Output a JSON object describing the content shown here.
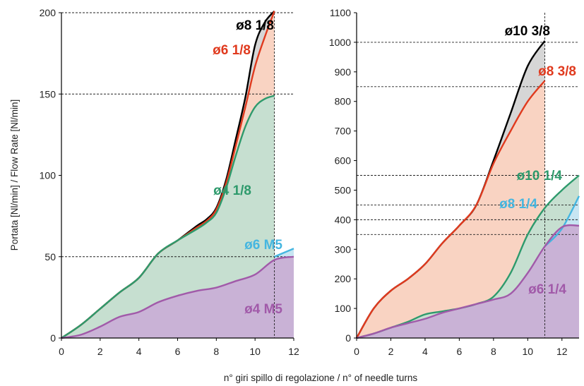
{
  "xlabel": "n° giri spillo di regolazione / n° of needle turns",
  "ylabel": "Portata [Nl/min] / Flow Rate [Nl/min]",
  "chart_data": [
    {
      "type": "area",
      "xlabel": "n° giri spillo di regolazione / n° of needle turns",
      "ylabel": "Portata [Nl/min] / Flow Rate [Nl/min]",
      "xlim": [
        0,
        12
      ],
      "ylim": [
        0,
        200
      ],
      "xticks": [
        0,
        2,
        4,
        6,
        8,
        10,
        12
      ],
      "yticks": [
        0,
        50,
        100,
        150,
        200
      ],
      "reference_lines": [
        50,
        150,
        200
      ],
      "end_line_x": 11,
      "series": [
        {
          "name": "ø8 1/8",
          "color": "#000000",
          "fill": "#d6d6d6",
          "x": [
            0,
            1,
            2,
            3,
            4,
            5,
            6,
            7,
            7.5,
            8,
            8.5,
            9,
            9.5,
            10,
            10.5,
            11
          ],
          "y": [
            0,
            8,
            18,
            28,
            37,
            52,
            60,
            69,
            73,
            80,
            97,
            122,
            148,
            180,
            194,
            201
          ]
        },
        {
          "name": "ø6 1/8",
          "color": "#e03a1e",
          "fill": "#f9d3c2",
          "x": [
            0,
            1,
            2,
            3,
            4,
            5,
            6,
            7,
            7.5,
            8,
            8.5,
            9,
            9.5,
            10,
            10.5,
            11
          ],
          "y": [
            0,
            8,
            18,
            28,
            37,
            52,
            60,
            68,
            72,
            79,
            95,
            118,
            142,
            167,
            185,
            201
          ]
        },
        {
          "name": "ø4 1/8",
          "color": "#2e9a6c",
          "fill": "#c6dfd0",
          "x": [
            0,
            1,
            2,
            3,
            4,
            5,
            6,
            7,
            7.5,
            8,
            8.5,
            9,
            9.5,
            10,
            10.5,
            11
          ],
          "y": [
            0,
            8,
            18,
            28,
            37,
            52,
            60,
            67,
            71,
            77,
            92,
            112,
            130,
            142,
            147,
            149
          ]
        },
        {
          "name": "ø6 M5",
          "color": "#45b6e0",
          "fill": "#c7e5f2",
          "x": [
            11,
            12
          ],
          "y": [
            50,
            55
          ]
        },
        {
          "name": "ø4 M5",
          "color": "#a15aa9",
          "fill": "#c9b2d6",
          "x": [
            0,
            1,
            2,
            3,
            4,
            5,
            6,
            7,
            8,
            9,
            10,
            11,
            12
          ],
          "y": [
            0,
            2,
            7,
            13,
            16,
            22,
            26,
            29,
            31,
            35,
            39,
            48,
            50
          ]
        }
      ]
    },
    {
      "type": "area",
      "xlabel": "n° giri spillo di regolazione / n° of needle turns",
      "xlim": [
        0,
        13
      ],
      "ylim": [
        0,
        1100
      ],
      "xticks": [
        0,
        2,
        4,
        6,
        8,
        10,
        12
      ],
      "yticks": [
        0,
        100,
        200,
        300,
        400,
        500,
        600,
        700,
        800,
        900,
        1000,
        1100
      ],
      "reference_lines": [
        350,
        400,
        450,
        550,
        850,
        1000
      ],
      "end_line_x": 11,
      "series": [
        {
          "name": "ø10 3/8",
          "color": "#000000",
          "fill": "#d6d6d6",
          "x": [
            0,
            1,
            2,
            3,
            4,
            5,
            6,
            7,
            8,
            9,
            10,
            11
          ],
          "y": [
            0,
            100,
            160,
            200,
            250,
            320,
            380,
            450,
            600,
            760,
            920,
            1005
          ]
        },
        {
          "name": "ø8 3/8",
          "color": "#e03a1e",
          "fill": "#f9d3c2",
          "x": [
            0,
            1,
            2,
            3,
            4,
            5,
            6,
            7,
            8,
            9,
            10,
            11
          ],
          "y": [
            0,
            100,
            160,
            200,
            250,
            320,
            380,
            450,
            590,
            700,
            800,
            870
          ]
        },
        {
          "name": "ø10 1/4",
          "color": "#2e9a6c",
          "fill": "#c6dfd0",
          "x": [
            0,
            1,
            2,
            3,
            4,
            5,
            6,
            7,
            8,
            9,
            10,
            11,
            12,
            13
          ],
          "y": [
            0,
            15,
            35,
            55,
            80,
            90,
            100,
            115,
            140,
            220,
            350,
            440,
            500,
            550
          ]
        },
        {
          "name": "ø8 1/4",
          "color": "#45b6e0",
          "fill": "#c7e5f2",
          "x": [
            11,
            12,
            13
          ],
          "y": [
            310,
            370,
            480
          ]
        },
        {
          "name": "ø6 1/4",
          "color": "#a15aa9",
          "fill": "#c9b2d6",
          "x": [
            0,
            1,
            2,
            3,
            4,
            5,
            6,
            7,
            8,
            9,
            10,
            11,
            12,
            13
          ],
          "y": [
            0,
            15,
            35,
            50,
            65,
            85,
            100,
            115,
            130,
            150,
            220,
            310,
            375,
            380
          ]
        }
      ]
    }
  ]
}
